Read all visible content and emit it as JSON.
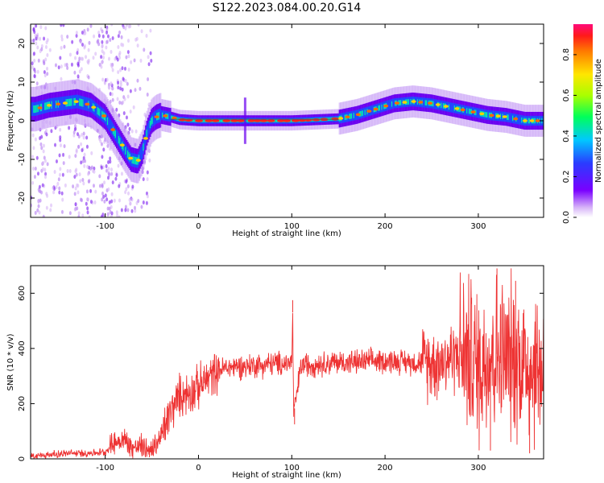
{
  "title": "S122.2023.084.00.20.G14",
  "chart_data": [
    {
      "type": "heatmap",
      "xlabel": "Height of straight line (km)",
      "ylabel": "Frequency (Hz)",
      "xlim": [
        -180,
        370
      ],
      "ylim": [
        -25,
        25
      ],
      "xticks": [
        -100,
        0,
        100,
        200,
        300
      ],
      "yticks": [
        -20,
        -10,
        0,
        10,
        20
      ],
      "colorbar": {
        "label": "Normalized spectral amplitude",
        "range": [
          0.0,
          0.95
        ],
        "ticks": [
          0.0,
          0.2,
          0.4,
          0.6,
          0.8
        ]
      },
      "ridge_line": {
        "x": [
          -175,
          -160,
          -145,
          -130,
          -115,
          -100,
          -90,
          -80,
          -72,
          -65,
          -60,
          -55,
          -50,
          -45,
          -40,
          -30,
          -20,
          0,
          50,
          100,
          150,
          170,
          190,
          210,
          230,
          250,
          270,
          290,
          310,
          330,
          350,
          370
        ],
        "y": [
          3,
          4,
          4.5,
          5,
          4,
          1,
          -3,
          -7,
          -10,
          -10.5,
          -8,
          -3,
          0,
          1,
          1.5,
          1,
          0.3,
          0,
          0,
          0,
          0.5,
          1.5,
          3,
          4.5,
          5,
          4.5,
          3.5,
          2.5,
          1.5,
          1,
          0,
          0
        ]
      }
    },
    {
      "type": "line",
      "xlabel": "Height of straight line (km)",
      "ylabel": "SNR (10 * v/v)",
      "xlim": [
        -180,
        370
      ],
      "ylim": [
        0,
        700
      ],
      "xticks": [
        -100,
        0,
        100,
        200,
        300
      ],
      "yticks": [
        0,
        200,
        400,
        600
      ],
      "series": [
        {
          "color": "#ee3333",
          "x": [
            -180,
            -160,
            -140,
            -120,
            -100,
            -90,
            -80,
            -70,
            -60,
            -50,
            -40,
            -30,
            -20,
            -10,
            0,
            10,
            20,
            30,
            40,
            50,
            60,
            70,
            80,
            90,
            100,
            101,
            102,
            110,
            130,
            150,
            170,
            190,
            210,
            230,
            250,
            260,
            270,
            280,
            290,
            300,
            310,
            320,
            330,
            340,
            350,
            360,
            370
          ],
          "y": [
            10,
            15,
            20,
            20,
            25,
            60,
            70,
            40,
            45,
            30,
            80,
            170,
            230,
            240,
            260,
            290,
            320,
            330,
            335,
            335,
            340,
            340,
            345,
            345,
            350,
            530,
            160,
            340,
            345,
            350,
            350,
            355,
            355,
            350,
            350,
            355,
            370,
            380,
            380,
            330,
            380,
            380,
            360,
            370,
            350,
            330,
            330
          ]
        }
      ],
      "annotations": [
        {
          "x": 101,
          "y": 575
        },
        {
          "x": 103,
          "y": 125
        },
        {
          "x": 320,
          "y": 690
        },
        {
          "x": 340,
          "y": 645
        },
        {
          "x": 313,
          "y": 30
        },
        {
          "x": 355,
          "y": 20
        }
      ]
    }
  ]
}
